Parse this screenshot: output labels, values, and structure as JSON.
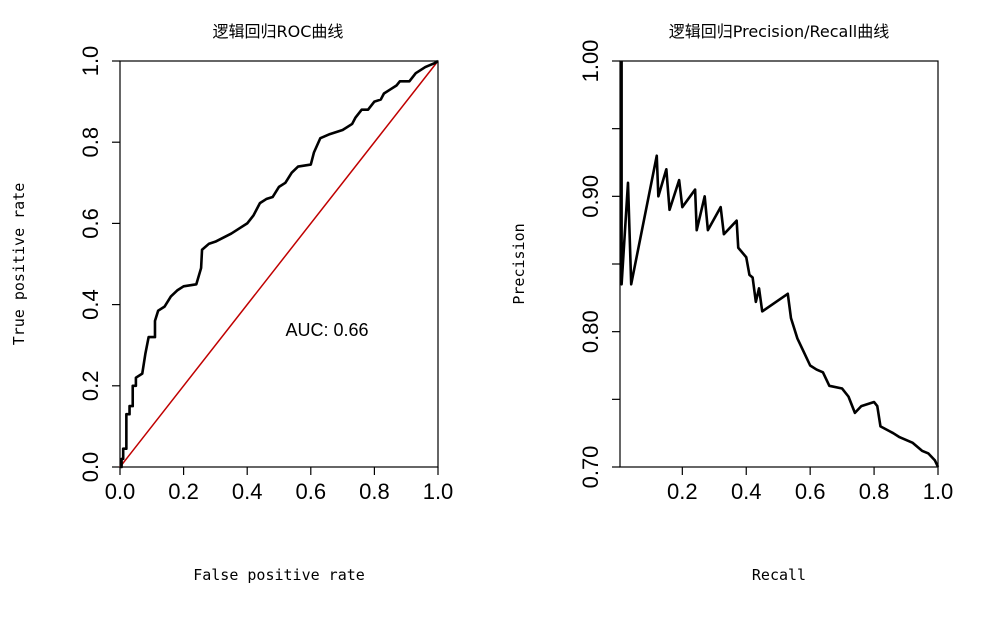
{
  "chart_data": [
    {
      "type": "line",
      "title": "逻辑回归ROC曲线",
      "xlabel": "False positive rate",
      "ylabel": "True positive rate",
      "xlim": [
        0,
        1
      ],
      "ylim": [
        0,
        1
      ],
      "xticks": [
        "0.0",
        "0.2",
        "0.4",
        "0.6",
        "0.8",
        "1.0"
      ],
      "yticks": [
        "0.0",
        "0.2",
        "0.4",
        "0.6",
        "0.8",
        "1.0"
      ],
      "annotation": "AUC: 0.66",
      "grid": false,
      "colors": {
        "curve": "#000000",
        "diagonal": "#c00000"
      },
      "series": [
        {
          "values": [
            [
              0.0,
              0.0
            ],
            [
              0.005,
              0.0
            ],
            [
              0.005,
              0.02
            ],
            [
              0.01,
              0.02
            ],
            [
              0.01,
              0.045
            ],
            [
              0.02,
              0.045
            ],
            [
              0.02,
              0.13
            ],
            [
              0.03,
              0.13
            ],
            [
              0.03,
              0.15
            ],
            [
              0.04,
              0.15
            ],
            [
              0.04,
              0.2
            ],
            [
              0.05,
              0.2
            ],
            [
              0.05,
              0.22
            ],
            [
              0.07,
              0.23
            ],
            [
              0.08,
              0.28
            ],
            [
              0.09,
              0.32
            ],
            [
              0.11,
              0.32
            ],
            [
              0.11,
              0.36
            ],
            [
              0.12,
              0.385
            ],
            [
              0.14,
              0.395
            ],
            [
              0.16,
              0.42
            ],
            [
              0.18,
              0.435
            ],
            [
              0.2,
              0.445
            ],
            [
              0.24,
              0.45
            ],
            [
              0.255,
              0.49
            ],
            [
              0.258,
              0.535
            ],
            [
              0.28,
              0.55
            ],
            [
              0.3,
              0.555
            ],
            [
              0.35,
              0.575
            ],
            [
              0.38,
              0.59
            ],
            [
              0.4,
              0.6
            ],
            [
              0.42,
              0.62
            ],
            [
              0.44,
              0.65
            ],
            [
              0.46,
              0.66
            ],
            [
              0.48,
              0.665
            ],
            [
              0.5,
              0.69
            ],
            [
              0.52,
              0.7
            ],
            [
              0.54,
              0.725
            ],
            [
              0.56,
              0.74
            ],
            [
              0.6,
              0.745
            ],
            [
              0.61,
              0.775
            ],
            [
              0.63,
              0.81
            ],
            [
              0.66,
              0.82
            ],
            [
              0.7,
              0.83
            ],
            [
              0.73,
              0.845
            ],
            [
              0.74,
              0.86
            ],
            [
              0.76,
              0.88
            ],
            [
              0.78,
              0.88
            ],
            [
              0.8,
              0.9
            ],
            [
              0.82,
              0.905
            ],
            [
              0.83,
              0.92
            ],
            [
              0.85,
              0.93
            ],
            [
              0.87,
              0.94
            ],
            [
              0.88,
              0.95
            ],
            [
              0.91,
              0.95
            ],
            [
              0.93,
              0.97
            ],
            [
              0.96,
              0.985
            ],
            [
              0.99,
              0.995
            ],
            [
              1.0,
              1.0
            ]
          ]
        },
        {
          "values": [
            [
              0,
              0
            ],
            [
              1,
              1
            ]
          ]
        }
      ]
    },
    {
      "type": "line",
      "title": "逻辑回归Precision/Recall曲线",
      "xlabel": "Recall",
      "ylabel": "Precision",
      "xlim": [
        0.005,
        1.0
      ],
      "ylim": [
        0.7,
        1.0
      ],
      "xticks": [
        "0.2",
        "0.4",
        "0.6",
        "0.8",
        "1.0"
      ],
      "yticks": [
        "0.70",
        "0.80",
        "0.90",
        "1.00"
      ],
      "minor_yticks": [
        0.75,
        0.85,
        0.95
      ],
      "grid": false,
      "colors": {
        "curve": "#000000"
      },
      "series": [
        {
          "values": [
            [
              0.01,
              1.0
            ],
            [
              0.01,
              0.835
            ],
            [
              0.03,
              0.91
            ],
            [
              0.04,
              0.835
            ],
            [
              0.12,
              0.93
            ],
            [
              0.125,
              0.9
            ],
            [
              0.15,
              0.92
            ],
            [
              0.16,
              0.89
            ],
            [
              0.19,
              0.912
            ],
            [
              0.2,
              0.892
            ],
            [
              0.24,
              0.905
            ],
            [
              0.245,
              0.875
            ],
            [
              0.27,
              0.9
            ],
            [
              0.28,
              0.875
            ],
            [
              0.32,
              0.892
            ],
            [
              0.33,
              0.872
            ],
            [
              0.37,
              0.882
            ],
            [
              0.375,
              0.862
            ],
            [
              0.4,
              0.855
            ],
            [
              0.41,
              0.842
            ],
            [
              0.42,
              0.84
            ],
            [
              0.43,
              0.822
            ],
            [
              0.44,
              0.832
            ],
            [
              0.45,
              0.815
            ],
            [
              0.53,
              0.828
            ],
            [
              0.54,
              0.81
            ],
            [
              0.56,
              0.795
            ],
            [
              0.58,
              0.785
            ],
            [
              0.6,
              0.775
            ],
            [
              0.62,
              0.772
            ],
            [
              0.64,
              0.77
            ],
            [
              0.66,
              0.76
            ],
            [
              0.7,
              0.758
            ],
            [
              0.72,
              0.752
            ],
            [
              0.74,
              0.74
            ],
            [
              0.76,
              0.745
            ],
            [
              0.8,
              0.748
            ],
            [
              0.81,
              0.745
            ],
            [
              0.82,
              0.73
            ],
            [
              0.86,
              0.725
            ],
            [
              0.88,
              0.722
            ],
            [
              0.9,
              0.72
            ],
            [
              0.92,
              0.718
            ],
            [
              0.95,
              0.712
            ],
            [
              0.97,
              0.71
            ],
            [
              0.99,
              0.705
            ],
            [
              1.0,
              0.7
            ]
          ]
        }
      ]
    }
  ]
}
